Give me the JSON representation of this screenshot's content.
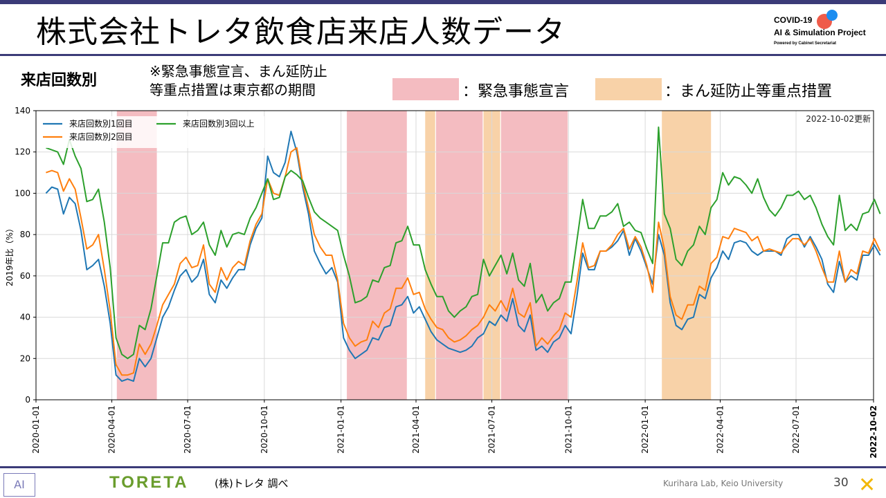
{
  "header": {
    "title": "株式会社トレタ飲食店来店人数データ",
    "logo_line1": "COVID-19",
    "logo_line2": "AI & Simulation Project",
    "logo_line3": "Powered by Cabinet Secretariat"
  },
  "subheader": {
    "subtitle": "来店回数別",
    "note_line1": "※緊急事態宣言、まん延防止",
    "note_line2": "等重点措置は東京都の期間",
    "legend_emergency": "：緊急事態宣言",
    "legend_semi": "：まん延防止等重点措置"
  },
  "colors": {
    "emergency": "#f4bcc1",
    "semi": "#f8d2a8",
    "s1": "#1f77b4",
    "s2": "#ff7f0e",
    "s3": "#2ca02c",
    "frame": "#3b3b78"
  },
  "footer": {
    "brand": "TORETA",
    "source": "(株)トレタ 調べ",
    "lab": "Kurihara Lab, Keio University",
    "page": "30",
    "ajicon": "AI"
  },
  "chart_data": {
    "type": "line",
    "updated": "2022-10-02更新",
    "ylabel": "2019年比（%）",
    "ylim": [
      0,
      140
    ],
    "yticks": [
      0,
      20,
      40,
      60,
      80,
      100,
      120,
      140
    ],
    "xlim": [
      "2020-01-01",
      "2022-10-02"
    ],
    "xticks": [
      "2020-01-01",
      "2020-04-01",
      "2020-07-01",
      "2020-10-01",
      "2021-01-01",
      "2021-04-01",
      "2021-07-01",
      "2021-10-01",
      "2022-01-01",
      "2022-04-01",
      "2022-07-01"
    ],
    "xtick_last": "2022-10-02",
    "emergency_periods": [
      [
        "2020-04-07",
        "2020-05-25"
      ],
      [
        "2021-01-08",
        "2021-03-21"
      ],
      [
        "2021-04-25",
        "2021-06-20"
      ],
      [
        "2021-07-12",
        "2021-09-30"
      ]
    ],
    "semi_periods": [
      [
        "2021-04-12",
        "2021-04-24"
      ],
      [
        "2021-06-21",
        "2021-07-11"
      ],
      [
        "2022-01-21",
        "2022-03-21"
      ]
    ],
    "start": "2020-01-13",
    "step_days": 7,
    "series": [
      {
        "name": "来店回数別1回目",
        "values": [
          100,
          103,
          102,
          90,
          98,
          95,
          82,
          63,
          65,
          68,
          55,
          37,
          12,
          9,
          10,
          9,
          20,
          16,
          20,
          30,
          40,
          45,
          53,
          60,
          63,
          57,
          60,
          68,
          51,
          47,
          58,
          54,
          59,
          63,
          63,
          75,
          83,
          88,
          118,
          110,
          108,
          115,
          130,
          120,
          103,
          90,
          72,
          66,
          61,
          64,
          57,
          30,
          24,
          20,
          22,
          24,
          30,
          29,
          35,
          36,
          45,
          46,
          50,
          42,
          45,
          39,
          33,
          29,
          27,
          25,
          24,
          23,
          24,
          26,
          30,
          32,
          38,
          36,
          41,
          38,
          49,
          36,
          33,
          41,
          24,
          26,
          23,
          28,
          30,
          36,
          32,
          50,
          71,
          63,
          63,
          72,
          72,
          74,
          77,
          82,
          70,
          78,
          72,
          64,
          56,
          80,
          70,
          47,
          36,
          34,
          39,
          40,
          51,
          49,
          59,
          64,
          72,
          68,
          76,
          77,
          76,
          72,
          70,
          72,
          72,
          72,
          70,
          78,
          80,
          80,
          74,
          79,
          74,
          68,
          56,
          52,
          67,
          57,
          60,
          58,
          70,
          70,
          75,
          70
        ]
      },
      {
        "name": "来店回数別2回目",
        "values": [
          110,
          111,
          110,
          101,
          107,
          102,
          88,
          73,
          75,
          80,
          63,
          43,
          17,
          12,
          12,
          13,
          27,
          22,
          27,
          36,
          46,
          51,
          56,
          66,
          69,
          64,
          65,
          75,
          56,
          52,
          64,
          58,
          64,
          67,
          65,
          77,
          85,
          90,
          107,
          100,
          99,
          108,
          120,
          122,
          105,
          93,
          80,
          74,
          70,
          70,
          58,
          37,
          30,
          26,
          28,
          29,
          38,
          35,
          42,
          44,
          54,
          54,
          59,
          51,
          52,
          44,
          39,
          35,
          34,
          30,
          28,
          29,
          31,
          34,
          36,
          40,
          46,
          43,
          48,
          43,
          54,
          42,
          40,
          47,
          26,
          30,
          27,
          31,
          34,
          42,
          40,
          57,
          76,
          64,
          65,
          72,
          72,
          75,
          80,
          83,
          73,
          79,
          74,
          65,
          52,
          86,
          73,
          50,
          41,
          39,
          46,
          46,
          55,
          53,
          66,
          69,
          79,
          78,
          83,
          82,
          81,
          77,
          79,
          72,
          73,
          72,
          71,
          75,
          78,
          78,
          75,
          78,
          72,
          64,
          57,
          57,
          72,
          57,
          63,
          61,
          72,
          71,
          78,
          72
        ]
      },
      {
        "name": "来店回数別3回以上",
        "values": [
          122,
          121,
          120,
          114,
          126,
          118,
          112,
          96,
          97,
          102,
          86,
          64,
          30,
          22,
          20,
          22,
          36,
          34,
          44,
          60,
          76,
          76,
          86,
          88,
          89,
          80,
          82,
          86,
          75,
          70,
          82,
          74,
          80,
          81,
          80,
          88,
          93,
          100,
          107,
          97,
          98,
          108,
          111,
          109,
          106,
          98,
          91,
          88,
          86,
          84,
          82,
          70,
          60,
          47,
          48,
          50,
          58,
          57,
          64,
          65,
          76,
          77,
          84,
          75,
          75,
          63,
          56,
          50,
          50,
          43,
          40,
          43,
          45,
          50,
          51,
          68,
          60,
          65,
          70,
          61,
          71,
          58,
          55,
          66,
          47,
          51,
          43,
          47,
          49,
          57,
          57,
          77,
          97,
          83,
          83,
          89,
          89,
          91,
          95,
          84,
          86,
          82,
          81,
          73,
          66,
          132,
          90,
          83,
          68,
          65,
          72,
          75,
          84,
          80,
          93,
          97,
          110,
          104,
          108,
          107,
          104,
          100,
          107,
          98,
          92,
          89,
          93,
          99,
          99,
          101,
          97,
          99,
          93,
          85,
          79,
          75,
          99,
          82,
          85,
          82,
          90,
          91,
          97,
          90
        ]
      }
    ]
  }
}
